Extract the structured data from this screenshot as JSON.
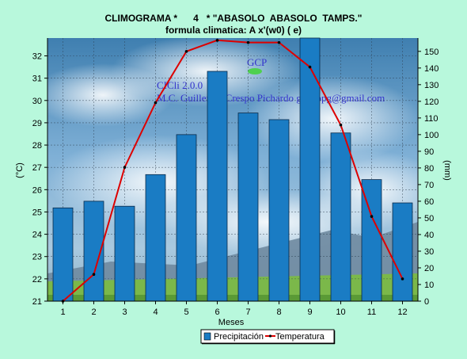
{
  "title_line1": "CLIMOGRAMA *      4   * \"ABASOLO  ABASOLO  TAMPS.\"",
  "title_line2": "formula climatica: A  x'(w0) ( e)",
  "watermark": {
    "logo": "GCP",
    "line1": "CICli 2.0.0",
    "line2": "M.C. Guillermo Crespo Pichardo   gcpoopg@gmail.com"
  },
  "colors": {
    "background": "#b8f8dc",
    "bar": "#1a7cc4",
    "line": "#dd0000",
    "marker": "#000000"
  },
  "chart_data": {
    "type": "bar",
    "categories": [
      "1",
      "2",
      "3",
      "4",
      "5",
      "6",
      "7",
      "8",
      "9",
      "10",
      "11",
      "12"
    ],
    "xlabel": "Meses",
    "ylabel_left": "(°C)",
    "ylabel_right": "(mm)",
    "ylim_left": [
      21,
      32.8
    ],
    "ylim_right": [
      0,
      158
    ],
    "yticks_left": [
      21,
      22,
      23,
      24,
      25,
      26,
      27,
      28,
      29,
      30,
      31,
      32
    ],
    "yticks_right": [
      0,
      10,
      20,
      30,
      40,
      50,
      60,
      70,
      80,
      90,
      100,
      110,
      120,
      130,
      140,
      150
    ],
    "grid": true,
    "series": [
      {
        "name": "Precipitación",
        "type": "bar",
        "axis": "right",
        "values": [
          56,
          60,
          57,
          76,
          100,
          138,
          113,
          109,
          160,
          101,
          73,
          59
        ]
      },
      {
        "name": "Temperatura",
        "type": "line",
        "axis": "left",
        "values": [
          21.0,
          22.2,
          27.0,
          29.9,
          32.2,
          32.7,
          32.6,
          32.6,
          31.5,
          28.9,
          24.8,
          22.0
        ]
      }
    ],
    "legend_position": "bottom-center"
  }
}
